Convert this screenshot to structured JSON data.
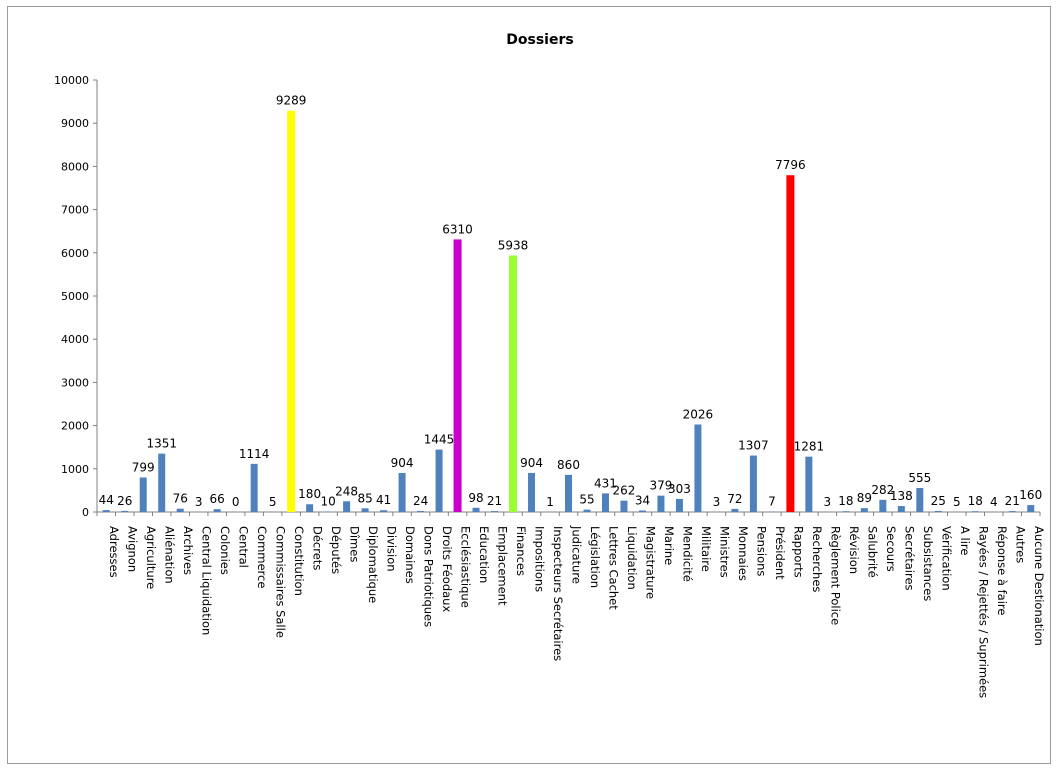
{
  "chart_data": {
    "type": "bar",
    "title": "Dossiers",
    "xlabel": "",
    "ylabel": "",
    "ylim": [
      0,
      10000
    ],
    "yticks": [
      "0",
      "1000",
      "2000",
      "3000",
      "4000",
      "5000",
      "6000",
      "7000",
      "8000",
      "9000",
      "10000"
    ],
    "grid": false,
    "legend": "none",
    "default_color": "#4f81bd",
    "categories": [
      "Adresses",
      "Avignon",
      "Agriculture",
      "Aliénation",
      "Archives",
      "Central Liquidation",
      "Colonies",
      "Central",
      "Commerce",
      "Commissaires Salle",
      "Constitution",
      "Décrets",
      "Députés",
      "Dîmes",
      "Diplomatique",
      "Division",
      "Domaines",
      "Dons Patriotiques",
      "Droits Féodaux",
      "Ecclésiastique",
      "Education",
      "Emplacement",
      "Finances",
      "Impositions",
      "Inspecteurs Secrétaires",
      "Judicature",
      "Législation",
      "Lettres Cachet",
      "Liquidation",
      "Magistrature",
      "Marine",
      "Mendicité",
      "Militaire",
      "Ministres",
      "Monnaies",
      "Pensions",
      "Président",
      "Rapports",
      "Recherches",
      "Règlement Police",
      "Révision",
      "Salubrité",
      "Secours",
      "Secrétaires",
      "Subsistances",
      "Vérification",
      "A lire",
      "Rayées / Rejettés / Suprimées",
      "Réponse à faire",
      "Autres",
      "Aucune Destionation"
    ],
    "values": [
      44,
      26,
      799,
      1351,
      76,
      3,
      66,
      0,
      1114,
      5,
      9289,
      180,
      10,
      248,
      85,
      41,
      904,
      24,
      1445,
      6310,
      98,
      21,
      5938,
      904,
      1,
      860,
      55,
      431,
      262,
      34,
      379,
      303,
      2026,
      3,
      72,
      1307,
      7,
      7796,
      1281,
      3,
      18,
      89,
      282,
      138,
      555,
      25,
      5,
      18,
      4,
      21,
      160
    ],
    "highlights": [
      {
        "category": "Constitution",
        "color": "#ffff00"
      },
      {
        "category": "Ecclésiastique",
        "color": "#cc00cc"
      },
      {
        "category": "Finances",
        "color": "#99ff33"
      },
      {
        "category": "Rapports",
        "color": "#ff0000"
      }
    ]
  }
}
